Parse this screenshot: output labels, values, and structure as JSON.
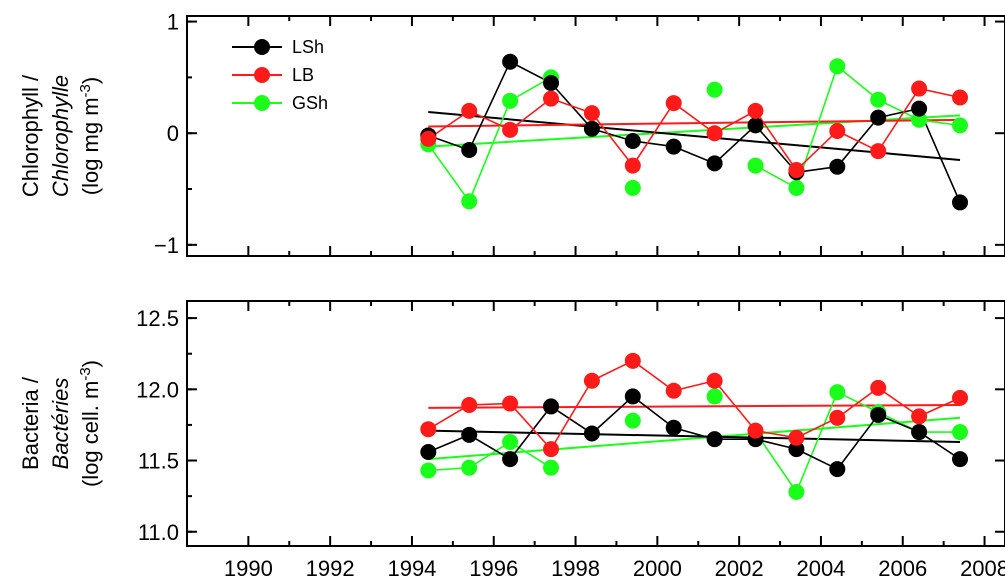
{
  "colors": {
    "LSh": "#000000",
    "LB": "#ff1a1a",
    "GSh": "#1aff1a"
  },
  "chart_data": [
    {
      "type": "line",
      "ylabel_lines": [
        "Chlorophyll /",
        "Chlorophylle",
        "(log mg m",
        "-3",
        ")"
      ],
      "xlim": [
        1988.5,
        2008.5
      ],
      "ylim": [
        -1.1,
        1.05
      ],
      "yticks": [
        -1,
        0,
        1
      ],
      "ytick_labels": [
        "−1",
        "0",
        "1"
      ],
      "xticks": [
        1990,
        1992,
        1994,
        1996,
        1998,
        2000,
        2002,
        2004,
        2006,
        2008
      ],
      "grid": false,
      "legend": {
        "position": "top-left",
        "entries": [
          "LSh",
          "LB",
          "GSh"
        ]
      },
      "series": [
        {
          "name": "LSh",
          "x": [
            1994.4,
            1995.4,
            1996.4,
            1997.4,
            1998.4,
            1999.4,
            2000.4,
            2001.4,
            2002.4,
            2003.4,
            2004.4,
            2005.4,
            2006.4,
            2007.4
          ],
          "y": [
            -0.02,
            -0.15,
            0.64,
            0.45,
            0.04,
            -0.07,
            -0.12,
            -0.27,
            0.07,
            -0.35,
            -0.3,
            0.14,
            0.22,
            -0.62
          ],
          "connect": [
            true,
            true,
            true,
            true,
            true,
            true,
            true,
            true,
            true,
            true,
            true,
            true,
            true,
            true
          ],
          "trend": {
            "x": [
              1994.4,
              2007.4
            ],
            "y": [
              0.19,
              -0.24
            ]
          }
        },
        {
          "name": "LB",
          "x": [
            1994.4,
            1995.4,
            1996.4,
            1997.4,
            1998.4,
            1999.4,
            2000.4,
            2001.4,
            2002.4,
            2003.4,
            2004.4,
            2005.4,
            2006.4,
            2007.4
          ],
          "y": [
            -0.05,
            0.2,
            0.03,
            0.31,
            0.18,
            -0.29,
            0.27,
            0.0,
            0.2,
            -0.33,
            0.02,
            -0.16,
            0.4,
            0.32
          ],
          "connect": [
            true,
            true,
            true,
            true,
            true,
            true,
            true,
            true,
            true,
            true,
            true,
            true,
            true,
            true
          ],
          "trend": {
            "x": [
              1994.4,
              2007.4
            ],
            "y": [
              0.06,
              0.12
            ]
          }
        },
        {
          "name": "GSh",
          "x": [
            1994.4,
            1995.4,
            1996.4,
            1997.4,
            1999.4,
            2001.4,
            2002.4,
            2003.4,
            2004.4,
            2005.4,
            2006.4,
            2007.4
          ],
          "y": [
            -0.1,
            -0.61,
            0.29,
            0.5,
            -0.49,
            0.39,
            -0.29,
            -0.49,
            0.6,
            0.3,
            0.12,
            0.07
          ],
          "connect": [
            true,
            true,
            true,
            true,
            false,
            false,
            true,
            true,
            true,
            true,
            true,
            true
          ],
          "trend": {
            "x": [
              1994.4,
              2007.4
            ],
            "y": [
              -0.12,
              0.16
            ]
          }
        }
      ]
    },
    {
      "type": "line",
      "ylabel_lines": [
        "Bacteria /",
        "Bactéries",
        "(log cell. m",
        "-3",
        ")"
      ],
      "xlim": [
        1988.5,
        2008.5
      ],
      "ylim": [
        10.9,
        12.62
      ],
      "yticks": [
        11.0,
        11.5,
        12.0,
        12.5
      ],
      "ytick_labels": [
        "11.0",
        "11.5",
        "12.0",
        "12.5"
      ],
      "xticks": [
        1990,
        1992,
        1994,
        1996,
        1998,
        2000,
        2002,
        2004,
        2006,
        2008
      ],
      "xtick_labels": [
        "1990",
        "1992",
        "1994",
        "1996",
        "1998",
        "2000",
        "2002",
        "2004",
        "2006",
        "2008"
      ],
      "grid": false,
      "series": [
        {
          "name": "LSh",
          "x": [
            1994.4,
            1995.4,
            1996.4,
            1997.4,
            1998.4,
            1999.4,
            2000.4,
            2001.4,
            2002.4,
            2003.4,
            2004.4,
            2005.4,
            2006.4,
            2007.4
          ],
          "y": [
            11.56,
            11.68,
            11.51,
            11.88,
            11.69,
            11.95,
            11.73,
            11.65,
            11.65,
            11.58,
            11.44,
            11.82,
            11.7,
            11.51
          ],
          "connect": [
            true,
            true,
            true,
            true,
            true,
            true,
            true,
            true,
            true,
            true,
            true,
            true,
            true,
            true
          ],
          "trend": {
            "x": [
              1994.4,
              2007.4
            ],
            "y": [
              11.71,
              11.63
            ]
          }
        },
        {
          "name": "LB",
          "x": [
            1994.4,
            1995.4,
            1996.4,
            1997.4,
            1998.4,
            1999.4,
            2000.4,
            2001.4,
            2002.4,
            2003.4,
            2004.4,
            2005.4,
            2006.4,
            2007.4
          ],
          "y": [
            11.72,
            11.89,
            11.9,
            11.58,
            12.06,
            12.2,
            11.99,
            12.06,
            11.71,
            11.66,
            11.8,
            12.01,
            11.81,
            11.94
          ],
          "connect": [
            true,
            true,
            true,
            true,
            true,
            true,
            true,
            true,
            true,
            true,
            true,
            true,
            true,
            true
          ],
          "trend": {
            "x": [
              1994.4,
              2007.4
            ],
            "y": [
              11.87,
              11.89
            ]
          }
        },
        {
          "name": "GSh",
          "x": [
            1994.4,
            1995.4,
            1996.4,
            1997.4,
            1999.4,
            2001.4,
            2002.4,
            2003.4,
            2004.4,
            2005.4,
            2006.4,
            2007.4
          ],
          "y": [
            11.43,
            11.45,
            11.63,
            11.45,
            11.78,
            11.95,
            11.7,
            11.28,
            11.98,
            11.84,
            11.7,
            11.7
          ],
          "connect": [
            true,
            true,
            true,
            true,
            false,
            false,
            true,
            true,
            true,
            true,
            true,
            true
          ],
          "trend": {
            "x": [
              1994.4,
              2007.4
            ],
            "y": [
              11.51,
              11.8
            ]
          }
        }
      ]
    }
  ]
}
